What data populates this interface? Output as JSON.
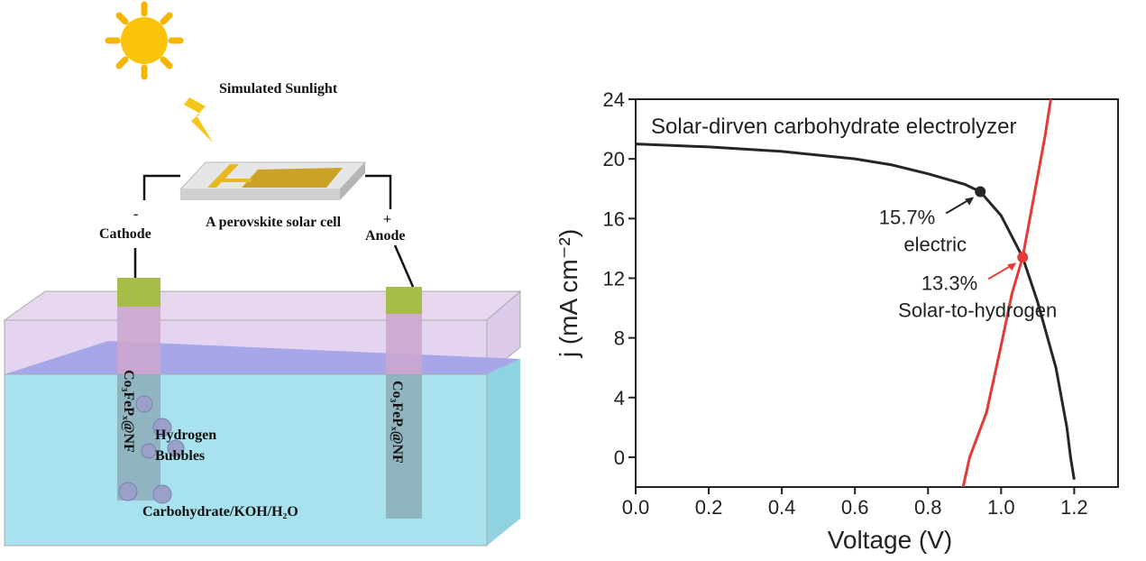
{
  "diagram": {
    "sunlight_label": "Simulated Sunlight",
    "solar_cell_label": "A perovskite solar cell",
    "cathode_sign": "-",
    "cathode_label": "Cathode",
    "anode_sign": "+",
    "anode_label": "Anode",
    "cathode_material": "Co₃FePₓ@NF",
    "anode_material": "Co₃FePₓ@NF",
    "bubbles_label": [
      "Hydrogen",
      "Bubbles"
    ],
    "electrolyte_label": "Carbohydrate/KOH/H₂O"
  },
  "chart_data": {
    "type": "line",
    "title": "Solar-dirven carbohydrate electrolyzer",
    "x_label": "Voltage (V)",
    "y_label": "j (mA cm⁻²)",
    "xlim": [
      0,
      1.32
    ],
    "ylim": [
      -2,
      24
    ],
    "xticks": [
      {
        "value": 0,
        "label": "0.0"
      },
      0.2,
      0.4,
      0.6,
      0.8,
      {
        "value": 1,
        "label": "1.0"
      },
      1.2
    ],
    "yticks": [
      0,
      4,
      8,
      12,
      16,
      20,
      24
    ],
    "series": [
      {
        "color": "#262626",
        "x": [
          0,
          0.2,
          0.4,
          0.6,
          0.7,
          0.8,
          0.9,
          0.943,
          1.0,
          1.059,
          1.1,
          1.15,
          1.18,
          1.19,
          1.2
        ],
        "values": [
          21.0,
          20.8,
          20.5,
          20.0,
          19.6,
          19.0,
          18.3,
          17.8,
          16.2,
          13.4,
          10.4,
          6.0,
          2.0,
          0,
          -1.5
        ]
      },
      {
        "color": "#e53935",
        "x": [
          0.896,
          0.914,
          0.96,
          1.0,
          1.03,
          1.059,
          1.09,
          1.12,
          1.136
        ],
        "values": [
          -2,
          0,
          3,
          7.5,
          11,
          13.4,
          17.5,
          21.5,
          24
        ]
      }
    ],
    "points": [
      {
        "x": 0.943,
        "y": 17.8,
        "color": "#262626",
        "labels": [
          "15.7%",
          "electric"
        ]
      },
      {
        "x": 1.059,
        "y": 13.4,
        "color": "#e53935",
        "labels": [
          "13.3%",
          "Solar-to-hydrogen"
        ]
      }
    ]
  }
}
